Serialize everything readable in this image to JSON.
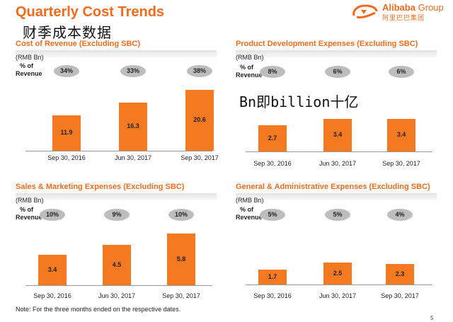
{
  "title": "Quarterly Cost Trends",
  "subtitle_cn": "财季成本数据",
  "logo": {
    "brand": "Alibaba",
    "group": "Group",
    "sub": "阿里巴巴集团"
  },
  "annotation": "Bn即billion十亿",
  "pct_label": "% of Revenue",
  "footnote": "Note: For the three months ended on the respective dates.",
  "page_number": "5",
  "colors": {
    "accent": "#f26b1d",
    "bar": "#f47920",
    "pill": "#bdbdbd"
  },
  "chart_data": [
    {
      "type": "bar",
      "title": "Cost of Revenue (Excluding SBC)",
      "unit": "(RMB Bn)",
      "categories": [
        "Sep 30, 2016",
        "Jun 30, 2017",
        "Sep 30, 2017"
      ],
      "values": [
        11.9,
        16.3,
        20.6
      ],
      "value_labels": [
        "11.9",
        "16.3",
        "20.6"
      ],
      "pct_of_revenue": [
        "34%",
        "33%",
        "38%"
      ]
    },
    {
      "type": "bar",
      "title": "Product Development Expenses (Excluding SBC)",
      "unit": "(RMB Bn)",
      "categories": [
        "Sep 30, 2016",
        "Jun 30, 2017",
        "Sep 30, 2017"
      ],
      "values": [
        2.7,
        3.4,
        3.4
      ],
      "value_labels": [
        "2.7",
        "3.4",
        "3.4"
      ],
      "pct_of_revenue": [
        "8%",
        "6%",
        "6%"
      ]
    },
    {
      "type": "bar",
      "title": "Sales & Marketing Expenses (Excluding SBC)",
      "unit": "(RMB Bn)",
      "categories": [
        "Sep 30, 2016",
        "Jun 30, 2017",
        "Sep 30, 2017"
      ],
      "values": [
        3.4,
        4.5,
        5.8
      ],
      "value_labels": [
        "3.4",
        "4.5",
        "5.8"
      ],
      "pct_of_revenue": [
        "10%",
        "9%",
        "10%"
      ]
    },
    {
      "type": "bar",
      "title": "General & Administrative Expenses (Excluding SBC)",
      "unit": "(RMB Bn)",
      "categories": [
        "Sep 30, 2016",
        "Jun 30, 2017",
        "Sep 30, 2017"
      ],
      "values": [
        1.7,
        2.5,
        2.3
      ],
      "value_labels": [
        "1.7",
        "2.5",
        "2.3"
      ],
      "pct_of_revenue": [
        "5%",
        "5%",
        "4%"
      ]
    }
  ]
}
